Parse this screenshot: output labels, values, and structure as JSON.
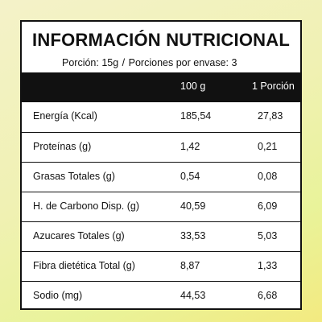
{
  "label": {
    "title": "INFORMACIÓN NUTRICIONAL",
    "serving_size": "Porción: 15g",
    "separator": "/",
    "servings_per_container": "Porciones por envase: 3",
    "columns": {
      "per_100g": "100 g",
      "per_portion": "1 Porción"
    },
    "rows": [
      {
        "name": "Energía (Kcal)",
        "per_100g": "185,54",
        "per_portion": "27,83"
      },
      {
        "name": "Proteínas (g)",
        "per_100g": "1,42",
        "per_portion": "0,21"
      },
      {
        "name": "Grasas Totales (g)",
        "per_100g": "0,54",
        "per_portion": "0,08"
      },
      {
        "name": "H. de Carbono Disp. (g)",
        "per_100g": "40,59",
        "per_portion": "6,09"
      },
      {
        "name": "Azucares Totales (g)",
        "per_100g": "33,53",
        "per_portion": "5,03"
      },
      {
        "name": "Fibra dietética Total (g)",
        "per_100g": "8,87",
        "per_portion": "1,33"
      },
      {
        "name": "Sodio (mg)",
        "per_100g": "44,53",
        "per_portion": "6,68"
      }
    ]
  },
  "colors": {
    "header_background": "#111111",
    "panel_background": "#ffffff",
    "page_background_start": "#f4f2c9",
    "page_background_end": "#f3ea80"
  }
}
